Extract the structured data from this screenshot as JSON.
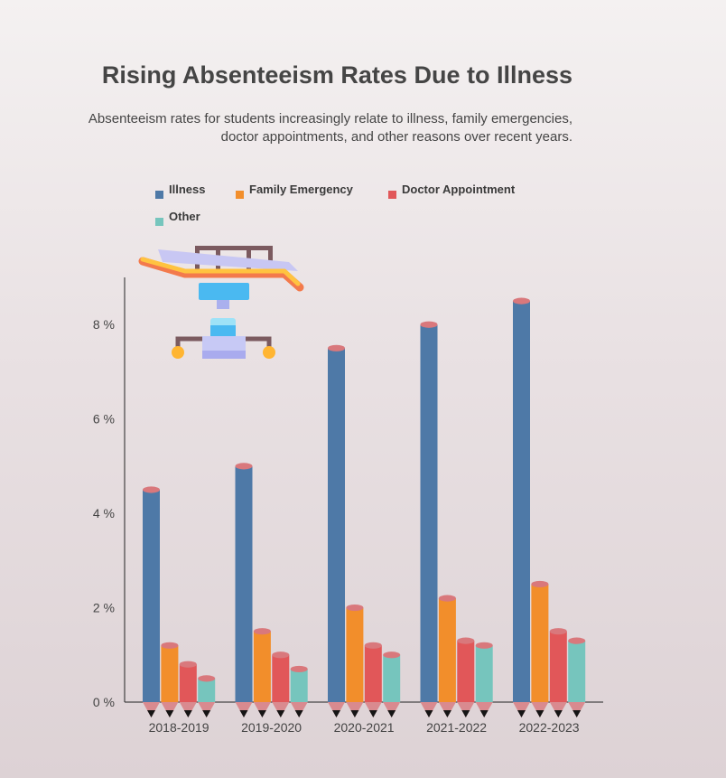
{
  "title": "Rising Absenteeism Rates Due to Illness",
  "subtitle_line1": "Absenteeism rates for students increasingly relate to illness, family emergencies,",
  "subtitle_line2": "doctor appointments, and other reasons over recent years.",
  "chart_data": {
    "type": "bar",
    "categories": [
      "2018-2019",
      "2019-2020",
      "2020-2021",
      "2021-2022",
      "2022-2023"
    ],
    "series": [
      {
        "name": "Illness",
        "color": "#4e79a7",
        "values": [
          4.5,
          5.0,
          7.5,
          8.0,
          8.5
        ]
      },
      {
        "name": "Family Emergency",
        "color": "#f28e2b",
        "values": [
          1.2,
          1.5,
          2.0,
          2.2,
          2.5
        ]
      },
      {
        "name": "Doctor Appointment",
        "color": "#e15759",
        "values": [
          0.8,
          1.0,
          1.2,
          1.3,
          1.5
        ]
      },
      {
        "name": "Other",
        "color": "#76c5bd",
        "values": [
          0.5,
          0.7,
          1.0,
          1.2,
          1.3
        ]
      }
    ],
    "y_ticks": [
      0,
      2,
      4,
      6,
      8
    ],
    "y_tick_suffix": " %",
    "ylim": [
      0,
      9
    ],
    "xlabel": "",
    "ylabel": "",
    "legend_position": "top",
    "grid": false,
    "bar_style": "pencil",
    "decoration": "hospital-bed-icon"
  }
}
